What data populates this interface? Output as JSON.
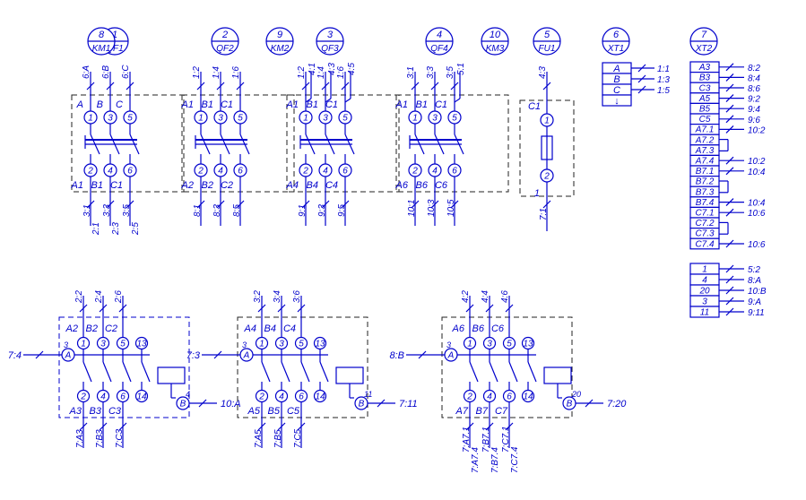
{
  "devices": [
    {
      "num": "1",
      "name": "QF1"
    },
    {
      "num": "2",
      "name": "QF2"
    },
    {
      "num": "3",
      "name": "QF3"
    },
    {
      "num": "4",
      "name": "QF4"
    },
    {
      "num": "5",
      "name": "FU1"
    },
    {
      "num": "6",
      "name": "XT1"
    },
    {
      "num": "7",
      "name": "XT2"
    },
    {
      "num": "8",
      "name": "KM1"
    },
    {
      "num": "9",
      "name": "KM2"
    },
    {
      "num": "10",
      "name": "KM3"
    }
  ],
  "breakers": [
    {
      "top": [
        "6:A",
        "6:B",
        "6:C"
      ],
      "in": [
        "A",
        "B",
        "C"
      ],
      "out": [
        "A1",
        "B1",
        "C1"
      ],
      "bottom": [
        [
          "3:1",
          "2:1"
        ],
        [
          "3:3",
          "2:3"
        ],
        [
          "3:5",
          "2:5"
        ]
      ]
    },
    {
      "top": [
        "1:2",
        "1:4",
        "1:6"
      ],
      "in": [
        "A1",
        "B1",
        "C1"
      ],
      "out": [
        "A2",
        "B2",
        "C2"
      ],
      "bottom": [
        [
          "8:1"
        ],
        [
          "8:3"
        ],
        [
          "8:5"
        ]
      ]
    },
    {
      "top": [
        "1:2",
        "1:4",
        "1:6"
      ],
      "top2": [
        "4:1",
        "4:3",
        "4:5"
      ],
      "in": [
        "A1",
        "B1",
        "C1"
      ],
      "out": [
        "A4",
        "B4",
        "C4"
      ],
      "bottom": [
        [
          "9:1"
        ],
        [
          "9:3"
        ],
        [
          "9:5"
        ]
      ]
    },
    {
      "top": [
        "3:1",
        "3:3",
        "3:5"
      ],
      "top2": [
        "",
        "",
        "5:1"
      ],
      "in": [
        "A1",
        "B1",
        "C1"
      ],
      "out": [
        "A6",
        "B6",
        "C6"
      ],
      "bottom": [
        [
          "10:1"
        ],
        [
          "10:3"
        ],
        [
          "10:5"
        ]
      ]
    }
  ],
  "fuse": {
    "top": "4:3",
    "in": "C1",
    "out": "1",
    "bottom": "7:1"
  },
  "pins": [
    "1",
    "2",
    "3",
    "4",
    "5",
    "6",
    "13",
    "14",
    "A",
    "B"
  ],
  "xt1": {
    "rows": [
      "A",
      "B",
      "C",
      "↓"
    ],
    "links": [
      "1:1",
      "1:3",
      "1:5"
    ]
  },
  "xt2": {
    "rows": [
      "A3",
      "B3",
      "C3",
      "A5",
      "B5",
      "C5",
      "A7.1",
      "A7.2",
      "A7.3",
      "A7.4",
      "B7.1",
      "B7.2",
      "B7.3",
      "B7.4",
      "C7.1",
      "C7.2",
      "C7.3",
      "C7.4",
      "1",
      "4",
      "20",
      "3",
      "11"
    ],
    "links": [
      "8:2",
      "8:4",
      "8:6",
      "9:2",
      "9:4",
      "9:6",
      "10:2",
      "",
      "",
      "10:2",
      "10:4",
      "",
      "",
      "10:4",
      "10:6",
      "",
      "",
      "10:6",
      "5:2",
      "8:A",
      "10:B",
      "9:A",
      "9:11"
    ]
  },
  "contactors": [
    {
      "top": [
        "2:2",
        "2:4",
        "2:6"
      ],
      "in": [
        "A2",
        "B2",
        "C2"
      ],
      "out": [
        "A3",
        "B3",
        "C3"
      ],
      "bottom": [
        "7:A3",
        "7:B3",
        "7:C3"
      ],
      "ctrl_in": "7:4",
      "ctrl_out": "10:A",
      "pin_a": "3",
      "pin_b": "4"
    },
    {
      "top": [
        "3:2",
        "3:4",
        "3:6"
      ],
      "in": [
        "A4",
        "B4",
        "C4"
      ],
      "out": [
        "A5",
        "B5",
        "C5"
      ],
      "bottom": [
        "7:A5",
        "7:B5",
        "7:C5"
      ],
      "ctrl_in": "7:3",
      "ctrl_out": "7:11",
      "pin_a": "3",
      "pin_b": "11"
    },
    {
      "top": [
        "4:2",
        "4:4",
        "4:6"
      ],
      "in": [
        "A6",
        "B6",
        "C6"
      ],
      "out": [
        "A7",
        "B7",
        "C7"
      ],
      "bottom": [
        [
          "7:A7.1",
          "7:A7.4"
        ],
        [
          "7:B7.1",
          "7:B7.4"
        ],
        [
          "7:C7.1",
          "7:C7.4"
        ]
      ],
      "ctrl_in": "8:B",
      "ctrl_out": "7:20",
      "pin_a": "3",
      "pin_b": "20"
    }
  ]
}
